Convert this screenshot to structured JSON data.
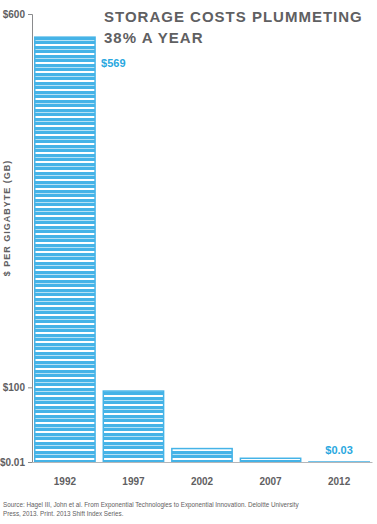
{
  "chart_data": {
    "type": "bar",
    "title": [
      "STORAGE COSTS PLUMMETING",
      "38% A YEAR"
    ],
    "y_label": "$ PER GIGABYTE (GB)",
    "categories": [
      "1992",
      "1997",
      "2002",
      "2007",
      "2012"
    ],
    "values": [
      569,
      95,
      18,
      5,
      0.03
    ],
    "value_labels": [
      "$569",
      null,
      null,
      null,
      "$0.03"
    ],
    "data_labels": true,
    "color": "#45b3e7",
    "ylim": [
      0.01,
      600
    ],
    "yticks": [
      {
        "value": 0.01,
        "label": "$0.01"
      },
      {
        "value": 100,
        "label": "$100"
      },
      {
        "value": 600,
        "label": "$600"
      }
    ],
    "grid": false,
    "source": [
      "Source: Hagel III, John et al. From Exponential Technologies to Exponential Innovation. Deloitte University",
      "Press, 2013. Print. 2013 Shift Index Series."
    ]
  }
}
